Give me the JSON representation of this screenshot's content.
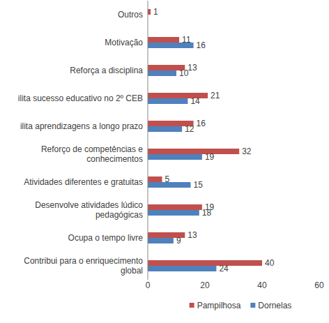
{
  "chart_data": {
    "type": "bar",
    "orientation": "horizontal",
    "categories": [
      "Contribui para o enriquecimento global",
      "Ocupa o tempo livre",
      "Desenvolve atividades lúdico pedagógicas",
      "Atividades diferentes e gratuitas",
      "Reforço de competências e conhecimentos",
      "ilita aprendizagens a longo prazo",
      "ilita sucesso educativo no 2º CEB",
      "Reforça a disciplina",
      "Motivação",
      "Outros"
    ],
    "series": [
      {
        "name": "Pampilhosa",
        "color": "#c0504d",
        "values": [
          40,
          13,
          19,
          5,
          32,
          16,
          21,
          13,
          11,
          1
        ]
      },
      {
        "name": "Dornelas",
        "color": "#4f81bd",
        "values": [
          24,
          9,
          18,
          15,
          19,
          12,
          14,
          10,
          16,
          null
        ]
      }
    ],
    "xlim": [
      0,
      60
    ],
    "xticks": [
      0,
      20,
      40,
      60
    ],
    "grid": false,
    "legend": "bottom",
    "data_labels": true
  }
}
